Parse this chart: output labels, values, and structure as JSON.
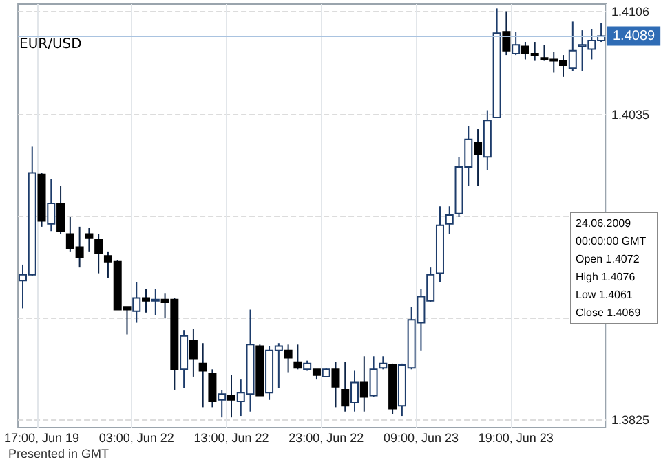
{
  "chart_data": {
    "type": "candlestick",
    "title": "EUR/USD",
    "categories": [
      null,
      null,
      "17:00, Jun 19",
      null,
      null,
      null,
      null,
      null,
      null,
      null,
      null,
      null,
      "03:00, Jun 22",
      null,
      null,
      null,
      null,
      null,
      null,
      null,
      null,
      null,
      "13:00, Jun 22",
      null,
      null,
      null,
      null,
      null,
      null,
      null,
      null,
      null,
      "23:00, Jun 22",
      null,
      null,
      null,
      null,
      null,
      null,
      null,
      null,
      null,
      "09:00, Jun 23",
      null,
      null,
      null,
      null,
      null,
      null,
      null,
      null,
      null,
      "19:00, Jun 23",
      null,
      null,
      null,
      null,
      null,
      null,
      null,
      null,
      null
    ],
    "ohlc": [
      [
        1.3921,
        1.3932,
        1.3902,
        1.3925
      ],
      [
        1.3925,
        1.4013,
        1.3924,
        1.3995
      ],
      [
        1.3994,
        1.3995,
        1.3958,
        1.3962
      ],
      [
        1.396,
        1.3991,
        1.3955,
        1.3974
      ],
      [
        1.3974,
        1.3986,
        1.3953,
        1.3955
      ],
      [
        1.3953,
        1.3965,
        1.3941,
        1.3943
      ],
      [
        1.3944,
        1.3958,
        1.393,
        1.3937
      ],
      [
        1.3953,
        1.3957,
        1.3941,
        1.395
      ],
      [
        1.3949,
        1.3953,
        1.3926,
        1.394
      ],
      [
        1.3938,
        1.3941,
        1.3923,
        1.3934
      ],
      [
        1.3934,
        1.3935,
        1.3901,
        1.3901
      ],
      [
        1.3903,
        1.3903,
        1.3884,
        1.3901
      ],
      [
        1.39,
        1.392,
        1.3892,
        1.3909
      ],
      [
        1.3909,
        1.3915,
        1.3899,
        1.3907
      ],
      [
        1.3907,
        1.3915,
        1.3897,
        1.3908
      ],
      [
        1.3908,
        1.3912,
        1.3895,
        1.3906
      ],
      [
        1.3908,
        1.3909,
        1.3846,
        1.386
      ],
      [
        1.386,
        1.3887,
        1.3847,
        1.3883
      ],
      [
        1.388,
        1.3888,
        1.3855,
        1.3867
      ],
      [
        1.3864,
        1.3878,
        1.3834,
        1.3859
      ],
      [
        1.3857,
        1.386,
        1.3834,
        1.3838
      ],
      [
        1.3839,
        1.3846,
        1.3827,
        1.3843
      ],
      [
        1.3842,
        1.3856,
        1.3827,
        1.3839
      ],
      [
        1.3838,
        1.3853,
        1.3828,
        1.3844
      ],
      [
        1.3843,
        1.3901,
        1.3831,
        1.3877
      ],
      [
        1.3876,
        1.3877,
        1.3842,
        1.3842
      ],
      [
        1.3844,
        1.3876,
        1.3839,
        1.3873
      ],
      [
        1.3873,
        1.3878,
        1.3847,
        1.3876
      ],
      [
        1.3873,
        1.3877,
        1.3858,
        1.3868
      ],
      [
        1.3865,
        1.3877,
        1.386,
        1.3861
      ],
      [
        1.386,
        1.3866,
        1.3859,
        1.3864
      ],
      [
        1.386,
        1.386,
        1.3853,
        1.3856
      ],
      [
        1.3855,
        1.3861,
        1.3855,
        1.386
      ],
      [
        1.386,
        1.3865,
        1.3834,
        1.3848
      ],
      [
        1.3846,
        1.3865,
        1.3831,
        1.3835
      ],
      [
        1.3837,
        1.3859,
        1.3831,
        1.3851
      ],
      [
        1.3851,
        1.3869,
        1.3831,
        1.3841
      ],
      [
        1.3842,
        1.3869,
        1.3841,
        1.386
      ],
      [
        1.3861,
        1.3869,
        1.386,
        1.3864
      ],
      [
        1.3863,
        1.3864,
        1.3829,
        1.3833
      ],
      [
        1.3835,
        1.3864,
        1.3828,
        1.3863
      ],
      [
        1.3861,
        1.3903,
        1.386,
        1.3894
      ],
      [
        1.3892,
        1.3915,
        1.3873,
        1.391
      ],
      [
        1.3907,
        1.393,
        1.3906,
        1.3925
      ],
      [
        1.3926,
        1.3972,
        1.392,
        1.3959
      ],
      [
        1.396,
        1.3972,
        1.3953,
        1.3966
      ],
      [
        1.3967,
        1.4006,
        1.3965,
        1.3999
      ],
      [
        1.3999,
        1.4027,
        1.3986,
        1.4018
      ],
      [
        1.4016,
        1.4025,
        1.3986,
        1.4008
      ],
      [
        1.4006,
        1.4038,
        1.3997,
        1.4031
      ],
      [
        1.4033,
        1.4108,
        1.4033,
        1.4091
      ],
      [
        1.4092,
        1.4106,
        1.4076,
        1.4079
      ],
      [
        1.4077,
        1.4092,
        1.4076,
        1.4083
      ],
      [
        1.4082,
        1.4085,
        1.4073,
        1.4077
      ],
      [
        1.4077,
        1.4085,
        1.4072,
        1.4076
      ],
      [
        1.4074,
        1.4083,
        1.4072,
        1.4073
      ],
      [
        1.4073,
        1.4078,
        1.4064,
        1.4072
      ],
      [
        1.4072,
        1.4076,
        1.4061,
        1.4069
      ],
      [
        1.4067,
        1.4099,
        1.4065,
        1.4079
      ],
      [
        1.4082,
        1.4093,
        1.4065,
        1.4083
      ],
      [
        1.408,
        1.4094,
        1.4073,
        1.4086
      ],
      [
        1.4086,
        1.4098,
        1.4085,
        1.4089
      ]
    ],
    "ylim": [
      1.382,
      1.4111
    ],
    "yticks": [
      1.3825,
      {
        "value": 1.3895,
        "label": null
      },
      {
        "value": 1.3965,
        "label": null
      },
      1.4035,
      1.4106
    ],
    "grid": true,
    "ref_lines": [
      {
        "axis": "y",
        "value": 1.4089,
        "label": "1.4089",
        "color": "#a9c3e0"
      }
    ],
    "annotations": [
      "Presented in GMT",
      "24.06.2009",
      "00:00:00 GMT",
      "Open 1.4072",
      "High 1.4076",
      "Low 1.4061",
      "Close 1.4069"
    ]
  }
}
